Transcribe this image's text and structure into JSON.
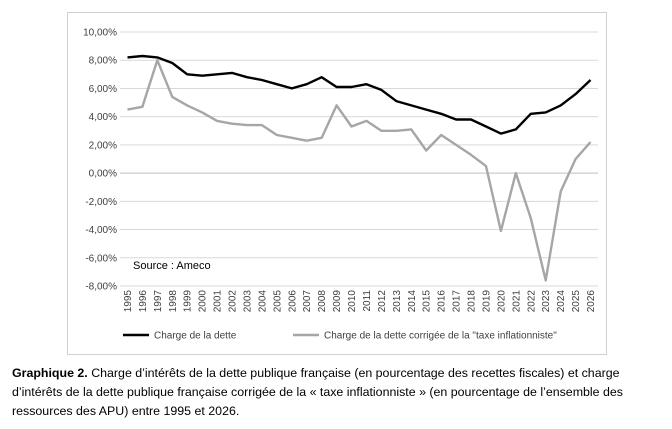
{
  "caption": {
    "label": "Graphique 2.",
    "text": " Charge d’intérêts de la dette publique française (en pourcentage des recettes fiscales) et charge d’intérêts de la dette publique française corrigée de la « taxe inflationniste » (en pourcentage de l’ensemble des ressources des APU) entre 1995 et 2026."
  },
  "chart_data": {
    "type": "line",
    "title": "",
    "xlabel": "",
    "ylabel": "",
    "source": "Source : Ameco",
    "x": [
      "1995",
      "1996",
      "1997",
      "1998",
      "1999",
      "2000",
      "2001",
      "2002",
      "2003",
      "2004",
      "2005",
      "2006",
      "2007",
      "2008",
      "2009",
      "2010",
      "2011",
      "2012",
      "2013",
      "2014",
      "2015",
      "2016",
      "2017",
      "2018",
      "2019",
      "2020",
      "2021",
      "2022",
      "2023",
      "2024",
      "2025",
      "2026"
    ],
    "ylim": [
      -8,
      10
    ],
    "yticks": [
      10,
      8,
      6,
      4,
      2,
      0,
      -2,
      -4,
      -6,
      -8
    ],
    "ytick_labels": [
      "10,00%",
      "8,00%",
      "6,00%",
      "4,00%",
      "2,00%",
      "0,00%",
      "-2,00%",
      "-4,00%",
      "-6,00%",
      "-8,00%"
    ],
    "grid": "horizontal",
    "legend_position": "bottom",
    "series": [
      {
        "name": "Charge de la dette",
        "color": "#000000",
        "values": [
          8.2,
          8.3,
          8.2,
          7.8,
          7.0,
          6.9,
          7.0,
          7.1,
          6.8,
          6.6,
          6.3,
          6.0,
          6.3,
          6.8,
          6.1,
          6.1,
          6.3,
          5.9,
          5.1,
          4.8,
          4.5,
          4.2,
          3.8,
          3.8,
          3.3,
          2.8,
          3.1,
          4.2,
          4.3,
          4.8,
          5.6,
          6.6
        ]
      },
      {
        "name": "Charge de la dette corrigée de la \"taxe inflationniste\"",
        "color": "#a6a6a6",
        "values": [
          4.5,
          4.7,
          8.0,
          5.4,
          4.8,
          4.3,
          3.7,
          3.5,
          3.4,
          3.4,
          2.7,
          2.5,
          2.3,
          2.5,
          4.8,
          3.3,
          3.7,
          3.0,
          3.0,
          3.1,
          1.6,
          2.7,
          2.0,
          1.3,
          0.5,
          -4.1,
          0.0,
          -3.2,
          -7.6,
          -1.3,
          1.0,
          2.2
        ]
      }
    ]
  }
}
